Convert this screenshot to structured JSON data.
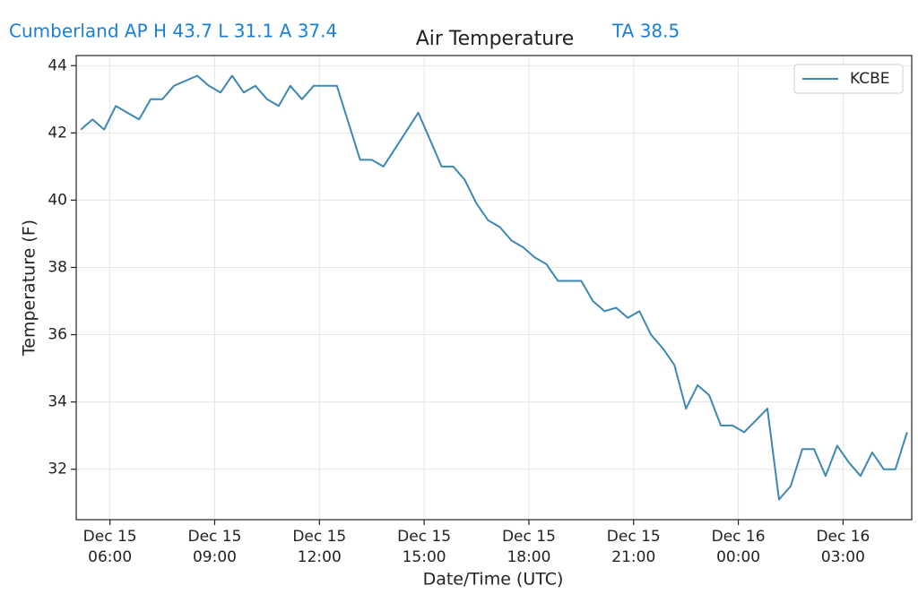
{
  "chart_data": {
    "type": "line",
    "title": "Air Temperature",
    "annotations": [
      "Cumberland AP H 43.7 L 31.1 A 37.4",
      "TA 38.5"
    ],
    "x_label": "Date/Time (UTC)",
    "y_label": "Temperature (F)",
    "x": [
      "Dec 15 05:10",
      "Dec 15 05:30",
      "Dec 15 05:50",
      "Dec 15 06:10",
      "Dec 15 06:50",
      "Dec 15 07:10",
      "Dec 15 07:30",
      "Dec 15 07:50",
      "Dec 15 08:30",
      "Dec 15 08:50",
      "Dec 15 09:10",
      "Dec 15 09:30",
      "Dec 15 09:50",
      "Dec 15 10:10",
      "Dec 15 10:30",
      "Dec 15 10:50",
      "Dec 15 11:10",
      "Dec 15 11:30",
      "Dec 15 11:50",
      "Dec 15 12:30",
      "Dec 15 13:10",
      "Dec 15 13:30",
      "Dec 15 13:50",
      "Dec 15 14:50",
      "Dec 15 15:10",
      "Dec 15 15:30",
      "Dec 15 15:50",
      "Dec 15 16:10",
      "Dec 15 16:30",
      "Dec 15 16:50",
      "Dec 15 17:10",
      "Dec 15 17:30",
      "Dec 15 17:50",
      "Dec 15 18:10",
      "Dec 15 18:30",
      "Dec 15 18:50",
      "Dec 15 19:30",
      "Dec 15 19:50",
      "Dec 15 20:10",
      "Dec 15 20:30",
      "Dec 15 20:50",
      "Dec 15 21:10",
      "Dec 15 21:30",
      "Dec 15 21:50",
      "Dec 15 22:10",
      "Dec 15 22:30",
      "Dec 15 22:50",
      "Dec 15 23:10",
      "Dec 15 23:30",
      "Dec 15 23:50",
      "Dec 16 00:10",
      "Dec 16 00:50",
      "Dec 16 01:10",
      "Dec 16 01:30",
      "Dec 16 01:50",
      "Dec 16 02:10",
      "Dec 16 02:30",
      "Dec 16 02:50",
      "Dec 16 03:10",
      "Dec 16 03:30",
      "Dec 16 03:50",
      "Dec 16 04:10",
      "Dec 16 04:30",
      "Dec 16 04:50"
    ],
    "series": [
      {
        "name": "KCBE",
        "color": "#3b88b4",
        "values": [
          42.1,
          42.4,
          42.1,
          42.8,
          42.4,
          43.0,
          43.0,
          43.4,
          43.7,
          43.4,
          43.2,
          43.7,
          43.2,
          43.4,
          43.0,
          42.8,
          43.4,
          43.0,
          43.4,
          43.4,
          41.2,
          41.2,
          41.0,
          42.6,
          41.8,
          41.0,
          41.0,
          40.6,
          39.9,
          39.4,
          39.2,
          38.8,
          38.6,
          38.3,
          38.1,
          37.6,
          37.6,
          37.0,
          36.7,
          36.8,
          36.5,
          36.7,
          36.0,
          35.6,
          35.1,
          33.8,
          34.5,
          34.2,
          33.3,
          33.3,
          33.1,
          33.8,
          31.1,
          31.5,
          32.6,
          32.6,
          31.8,
          32.7,
          32.2,
          31.8,
          32.5,
          32.0,
          32.0,
          33.1
        ]
      }
    ],
    "xlim": [
      "Dec 15 05:02",
      "Dec 16 04:58"
    ],
    "xticks": [
      "Dec 15 06:00",
      "Dec 15 09:00",
      "Dec 15 12:00",
      "Dec 15 15:00",
      "Dec 15 18:00",
      "Dec 15 21:00",
      "Dec 16 00:00",
      "Dec 16 03:00"
    ],
    "ylim": [
      30.5,
      44.3
    ],
    "yticks": [
      32,
      34,
      36,
      38,
      40,
      42,
      44
    ],
    "grid": true,
    "legend": "upper right"
  }
}
